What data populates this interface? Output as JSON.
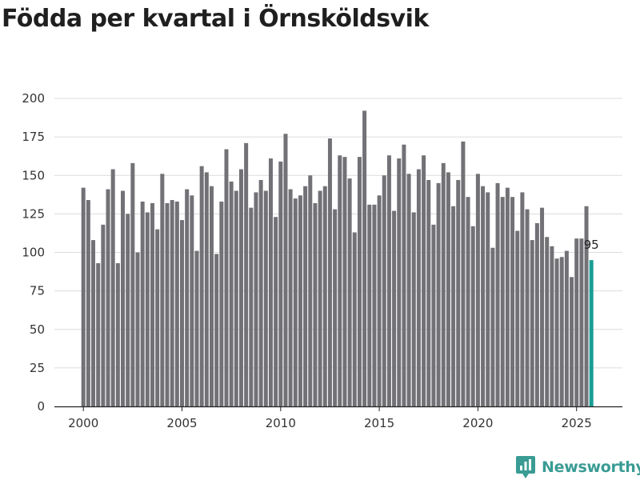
{
  "title": "Födda per kvartal i Örnsköldsvik",
  "brand": {
    "name": "Newsworthy",
    "icon": "newsworthy-logo-icon"
  },
  "colors": {
    "bar": "#727176",
    "highlight": "#1a9e94",
    "grid": "#dcdcdc",
    "axis": "#222222",
    "brand": "#3a9c94"
  },
  "chart_data": {
    "type": "bar",
    "title": "Födda per kvartal i Örnsköldsvik",
    "xlabel": "",
    "ylabel": "",
    "ylim": [
      0,
      200
    ],
    "y_ticks": [
      0,
      25,
      50,
      75,
      100,
      125,
      150,
      175,
      200
    ],
    "x_ticks": [
      "2000",
      "2005",
      "2010",
      "2015",
      "2020",
      "2025"
    ],
    "grid": true,
    "start": "2000 Q1",
    "frequency": "quarterly",
    "categories": [
      "2000 Q1",
      "2000 Q2",
      "2000 Q3",
      "2000 Q4",
      "2001 Q1",
      "2001 Q2",
      "2001 Q3",
      "2001 Q4",
      "2002 Q1",
      "2002 Q2",
      "2002 Q3",
      "2002 Q4",
      "2003 Q1",
      "2003 Q2",
      "2003 Q3",
      "2003 Q4",
      "2004 Q1",
      "2004 Q2",
      "2004 Q3",
      "2004 Q4",
      "2005 Q1",
      "2005 Q2",
      "2005 Q3",
      "2005 Q4",
      "2006 Q1",
      "2006 Q2",
      "2006 Q3",
      "2006 Q4",
      "2007 Q1",
      "2007 Q2",
      "2007 Q3",
      "2007 Q4",
      "2008 Q1",
      "2008 Q2",
      "2008 Q3",
      "2008 Q4",
      "2009 Q1",
      "2009 Q2",
      "2009 Q3",
      "2009 Q4",
      "2010 Q1",
      "2010 Q2",
      "2010 Q3",
      "2010 Q4",
      "2011 Q1",
      "2011 Q2",
      "2011 Q3",
      "2011 Q4",
      "2012 Q1",
      "2012 Q2",
      "2012 Q3",
      "2012 Q4",
      "2013 Q1",
      "2013 Q2",
      "2013 Q3",
      "2013 Q4",
      "2014 Q1",
      "2014 Q2",
      "2014 Q3",
      "2014 Q4",
      "2015 Q1",
      "2015 Q2",
      "2015 Q3",
      "2015 Q4",
      "2016 Q1",
      "2016 Q2",
      "2016 Q3",
      "2016 Q4",
      "2017 Q1",
      "2017 Q2",
      "2017 Q3",
      "2017 Q4",
      "2018 Q1",
      "2018 Q2",
      "2018 Q3",
      "2018 Q4",
      "2019 Q1",
      "2019 Q2",
      "2019 Q3",
      "2019 Q4",
      "2020 Q1",
      "2020 Q2",
      "2020 Q3",
      "2020 Q4",
      "2021 Q1",
      "2021 Q2",
      "2021 Q3",
      "2021 Q4",
      "2022 Q1",
      "2022 Q2",
      "2022 Q3",
      "2022 Q4",
      "2023 Q1",
      "2023 Q2",
      "2023 Q3",
      "2023 Q4",
      "2024 Q1",
      "2024 Q2",
      "2024 Q3",
      "2024 Q4",
      "2025 Q1",
      "2025 Q2",
      "2025 Q3",
      "2025 Q4"
    ],
    "values": [
      142,
      134,
      108,
      93,
      118,
      141,
      154,
      93,
      140,
      125,
      158,
      100,
      133,
      126,
      132,
      115,
      151,
      132,
      134,
      133,
      121,
      141,
      137,
      101,
      156,
      152,
      143,
      99,
      133,
      167,
      146,
      140,
      154,
      171,
      129,
      139,
      147,
      140,
      161,
      123,
      159,
      177,
      141,
      135,
      137,
      143,
      150,
      132,
      140,
      143,
      174,
      128,
      163,
      162,
      148,
      113,
      162,
      192,
      131,
      131,
      137,
      150,
      163,
      127,
      161,
      170,
      151,
      126,
      154,
      163,
      147,
      118,
      145,
      158,
      152,
      130,
      147,
      172,
      136,
      117,
      151,
      143,
      139,
      103,
      145,
      136,
      142,
      136,
      114,
      139,
      128,
      108,
      119,
      129,
      110,
      104,
      96,
      97,
      101,
      84,
      109,
      109,
      130,
      95
    ],
    "highlight_index": 103,
    "data_labels": [
      {
        "index": 103,
        "text": "95"
      }
    ]
  }
}
